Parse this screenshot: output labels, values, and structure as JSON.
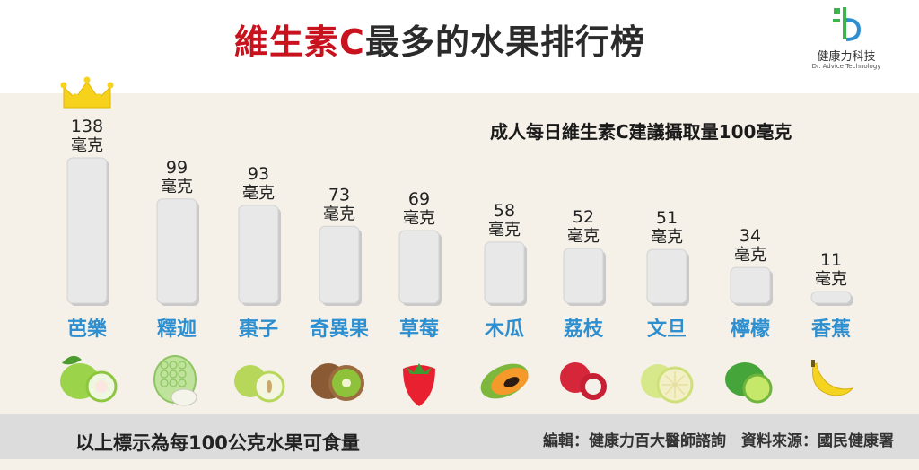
{
  "header": {
    "title_highlight": "維生素C",
    "title_rest": "最多的水果排行榜"
  },
  "logo": {
    "name": "健康力科技",
    "subtitle": "Dr. Advice Technology",
    "colors": [
      "#3ab54a",
      "#2e8fd0"
    ]
  },
  "chart_data": {
    "type": "bar",
    "subtitle": "成人每日維生素C建議攝取量100毫克",
    "unit": "毫克",
    "categories": [
      "芭樂",
      "釋迦",
      "棗子",
      "奇異果",
      "草莓",
      "木瓜",
      "荔枝",
      "文旦",
      "檸檬",
      "香蕉"
    ],
    "values": [
      138,
      99,
      93,
      73,
      69,
      58,
      52,
      51,
      34,
      11
    ],
    "top_marker": "crown-icon",
    "ylim": [
      0,
      138
    ],
    "grid": false,
    "bar_color": "#e8e8e8",
    "label_color": "#2e8fd0"
  },
  "fruits_icons": [
    "guava-icon",
    "sugar-apple-icon",
    "jujube-icon",
    "kiwi-icon",
    "strawberry-icon",
    "papaya-icon",
    "lychee-icon",
    "pomelo-icon",
    "lime-icon",
    "banana-icon"
  ],
  "footer": {
    "note": "以上標示為每100公克水果可食量",
    "credit": "編輯：健康力百大醫師諮詢　資料來源：國民健康署"
  }
}
